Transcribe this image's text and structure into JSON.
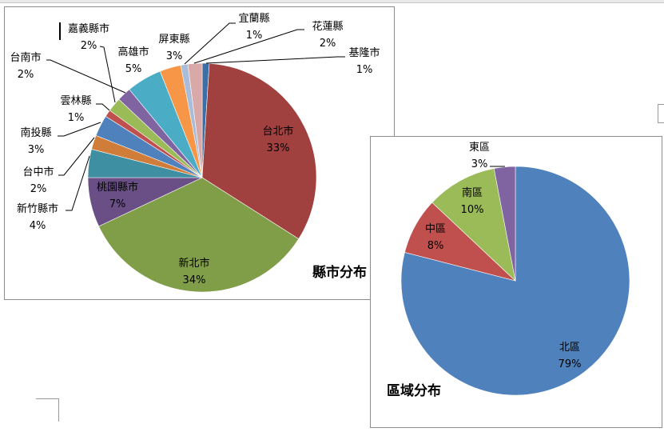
{
  "chart_data": [
    {
      "type": "pie",
      "title": "縣市分布",
      "start_angle": "12 o'clock, clockwise",
      "categories": [
        "基隆市",
        "台北市",
        "新北市",
        "桃園縣市",
        "新竹縣市",
        "台中市",
        "南投縣",
        "雲林縣",
        "嘉義縣市",
        "台南市",
        "高雄市",
        "屏東縣",
        "宜蘭縣",
        "花蓮縣"
      ],
      "values": [
        1,
        33,
        34,
        7,
        4,
        2,
        3,
        1,
        2,
        2,
        5,
        3,
        1,
        2
      ],
      "labels": [
        "1%",
        "33%",
        "34%",
        "7%",
        "4%",
        "2%",
        "3%",
        "1%",
        "2%",
        "2%",
        "5%",
        "3%",
        "1%",
        "2%"
      ],
      "colors": [
        "#3d6ea6",
        "#a0403f",
        "#809d48",
        "#6a4f86",
        "#3f8fa3",
        "#d17d3a",
        "#4f81bd",
        "#c0504d",
        "#9bbb59",
        "#8064a2",
        "#4bacc6",
        "#f79646",
        "#a9bcda",
        "#d9a8a8"
      ]
    },
    {
      "type": "pie",
      "title": "區域分布",
      "start_angle": "12 o'clock, clockwise",
      "categories": [
        "北區",
        "中區",
        "南區",
        "東區"
      ],
      "values": [
        79,
        8,
        10,
        3
      ],
      "labels": [
        "79%",
        "8%",
        "10%",
        "3%"
      ],
      "colors": [
        "#4f81bd",
        "#c0504d",
        "#9bbb59",
        "#8064a2"
      ]
    }
  ]
}
